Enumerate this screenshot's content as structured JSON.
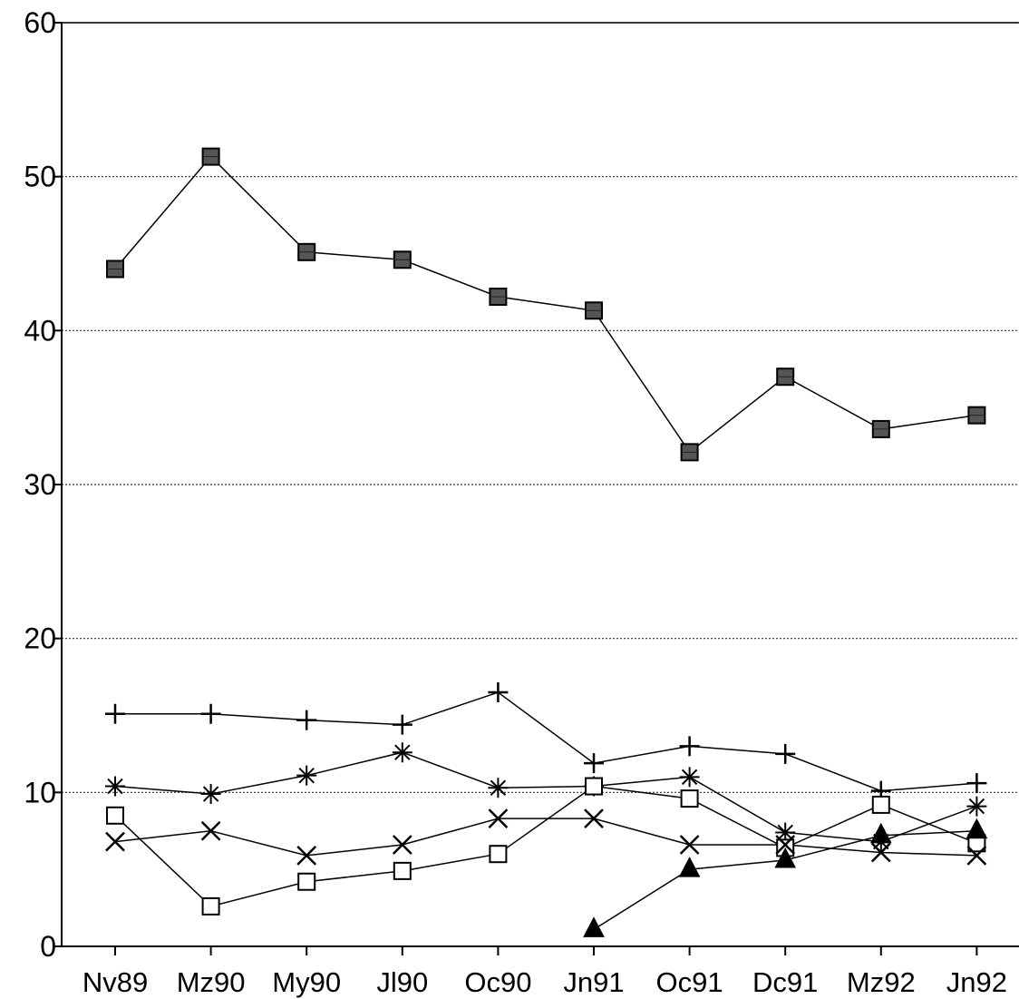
{
  "chart_data": {
    "type": "line",
    "title": "",
    "xlabel": "",
    "ylabel": "",
    "categories": [
      "Nv89",
      "Mz90",
      "My90",
      "Jl90",
      "Oc90",
      "Jn91",
      "Oc91",
      "Dc91",
      "Mz92",
      "Jn92"
    ],
    "ylim": [
      0,
      60
    ],
    "yticks": [
      "0",
      "10",
      "20",
      "30",
      "40",
      "50",
      "60"
    ],
    "grid": "horizontal dotted",
    "legend": "none",
    "series": [
      {
        "marker": "filled-square",
        "color": "#000000",
        "values": [
          44,
          51.3,
          45.1,
          44.6,
          42.2,
          41.3,
          32.1,
          37,
          33.6,
          34.5
        ]
      },
      {
        "marker": "plus",
        "color": "#000000",
        "values": [
          15.1,
          15.1,
          14.7,
          14.4,
          16.5,
          11.9,
          13,
          12.5,
          10.1,
          10.6
        ]
      },
      {
        "marker": "asterisk",
        "color": "#000000",
        "values": [
          10.4,
          9.9,
          11.1,
          12.6,
          10.3,
          10.4,
          11,
          7.4,
          6.8,
          9.1
        ]
      },
      {
        "marker": "open-square",
        "color": "#000000",
        "values": [
          8.5,
          2.6,
          4.2,
          4.9,
          6,
          10.4,
          9.6,
          6.4,
          9.2,
          6.7
        ]
      },
      {
        "marker": "x",
        "color": "#000000",
        "values": [
          6.8,
          7.5,
          5.9,
          6.6,
          8.3,
          8.3,
          6.6,
          6.6,
          6.1,
          5.9
        ]
      },
      {
        "marker": "filled-triangle",
        "color": "#000000",
        "values": [
          null,
          null,
          null,
          null,
          null,
          1.1,
          5,
          5.6,
          7.2,
          7.5
        ]
      }
    ]
  }
}
